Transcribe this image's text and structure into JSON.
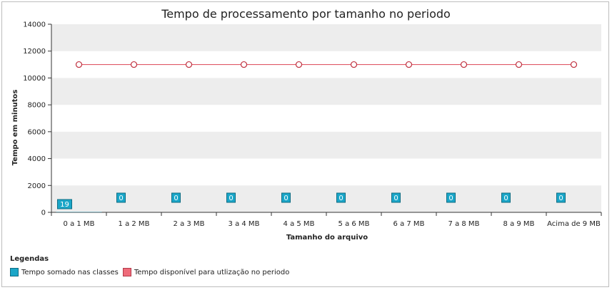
{
  "chart_data": {
    "type": "bar",
    "title": "Tempo de processamento por tamanho no periodo",
    "xlabel": "Tamanho do arquivo",
    "ylabel": "Tempo em minutos",
    "ylim": [
      0,
      14000
    ],
    "yticks": [
      0,
      2000,
      4000,
      6000,
      8000,
      10000,
      12000,
      14000
    ],
    "categories": [
      "0 a 1 MB",
      "1 a 2 MB",
      "2 a 3 MB",
      "3 a 4 MB",
      "4 a 5 MB",
      "5 a 6 MB",
      "6 a 7 MB",
      "7 a 8 MB",
      "8 a 9 MB",
      "Acima de 9 MB"
    ],
    "series": [
      {
        "name": "Tempo somado nas classes",
        "kind": "bar",
        "color": "#1aa6c8",
        "values": [
          19,
          0,
          0,
          0,
          0,
          0,
          0,
          0,
          0,
          0
        ],
        "labels": [
          "19",
          "0",
          "0",
          "0",
          "0",
          "0",
          "0",
          "0",
          "0",
          "0"
        ]
      },
      {
        "name": "Tempo disponível para utlização no periodo",
        "kind": "line",
        "color": "#e05a67",
        "values": [
          11000,
          11000,
          11000,
          11000,
          11000,
          11000,
          11000,
          11000,
          11000,
          11000
        ]
      }
    ],
    "grid": "alternating horizontal bands",
    "legend_title": "Legendas",
    "legend_placement": "bottom-left"
  }
}
